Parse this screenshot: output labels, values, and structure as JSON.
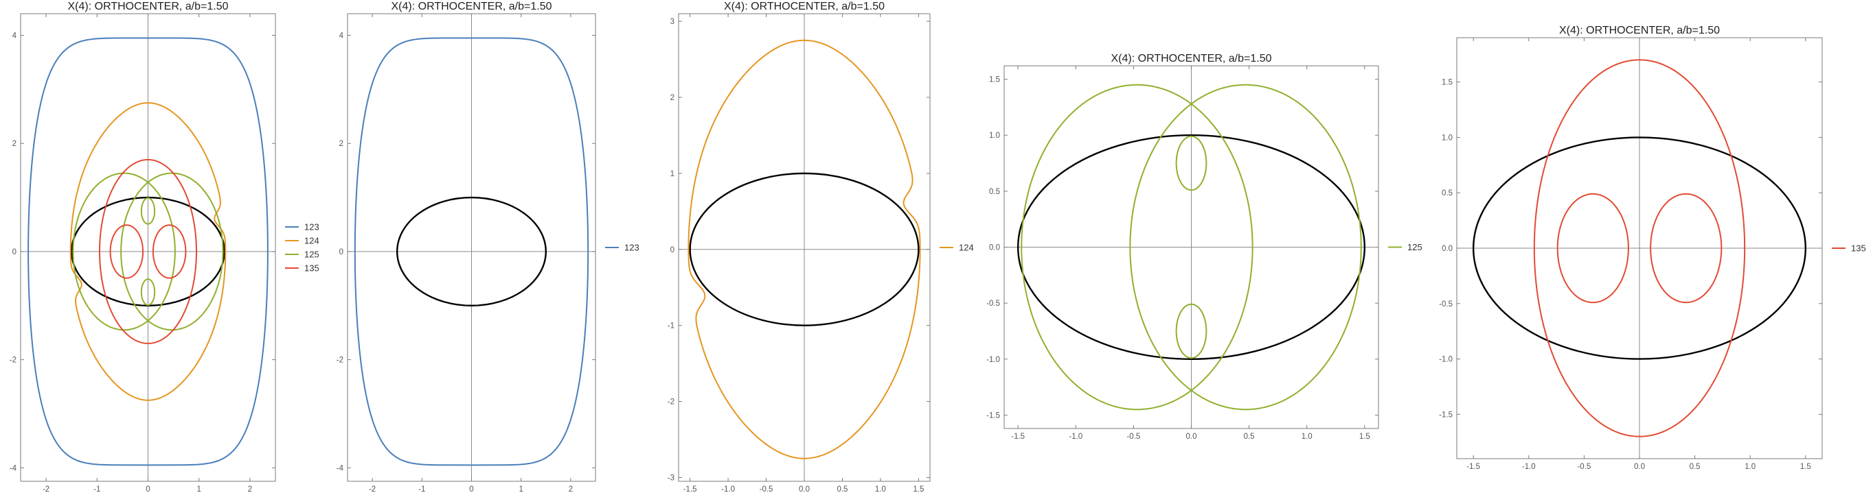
{
  "chart_data": [
    {
      "type": "line",
      "title": "X(4): ORTHOCENTER, a/b=1.50",
      "xlim": [
        -2.5,
        2.5
      ],
      "ylim": [
        -4.25,
        4.4
      ],
      "xticks": [
        -2,
        -1,
        0,
        1,
        2
      ],
      "yticks": [
        -4,
        -2,
        0,
        2,
        4
      ],
      "xtick_labels": [
        "-2",
        "-1",
        "0",
        "1",
        "2"
      ],
      "ytick_labels": [
        "-4",
        "-2",
        "0",
        "2",
        "4"
      ],
      "ellipse": {
        "a": 1.5,
        "b": 1.0
      },
      "series": [
        {
          "name": "123",
          "color": "#4a7ebb",
          "kind": "rounded-oval",
          "rx": 2.35,
          "ry": 3.95,
          "n": 6
        },
        {
          "name": "124",
          "color": "#e69520",
          "kind": "peanut",
          "rx": 1.52,
          "ry": 2.75,
          "dip": 0.12
        },
        {
          "name": "125",
          "color": "#8fb02c",
          "kind": "double-lobes",
          "lobe_cx": 0.47,
          "lobe_rx": 1.0,
          "lobe_ry": 1.45,
          "loop_cy": 0.75,
          "loop_rx": 0.13,
          "loop_ry": 0.24
        },
        {
          "name": "135",
          "color": "#e34a33",
          "kind": "circles",
          "big_rx": 0.95,
          "big_ry": 1.7,
          "small_cx": 0.42,
          "small_rx": 0.32,
          "small_ry": 0.49
        }
      ],
      "legend": "right"
    },
    {
      "type": "line",
      "title": "X(4): ORTHOCENTER, a/b=1.50",
      "xlim": [
        -2.5,
        2.5
      ],
      "ylim": [
        -4.25,
        4.4
      ],
      "xticks": [
        -2,
        -1,
        0,
        1,
        2
      ],
      "yticks": [
        -4,
        -2,
        0,
        2,
        4
      ],
      "xtick_labels": [
        "-2",
        "-1",
        "0",
        "1",
        "2"
      ],
      "ytick_labels": [
        "-4",
        "-2",
        "0",
        "2",
        "4"
      ],
      "ellipse": {
        "a": 1.5,
        "b": 1.0
      },
      "series": [
        {
          "name": "123",
          "color": "#4a7ebb",
          "kind": "rounded-oval",
          "rx": 2.35,
          "ry": 3.95,
          "n": 6
        }
      ],
      "legend": "right"
    },
    {
      "type": "line",
      "title": "X(4): ORTHOCENTER, a/b=1.50",
      "xlim": [
        -1.65,
        1.65
      ],
      "ylim": [
        -3.05,
        3.1
      ],
      "xticks": [
        -1.5,
        -1.0,
        -0.5,
        0.0,
        0.5,
        1.0,
        1.5
      ],
      "yticks": [
        -3,
        -2,
        -1,
        0,
        1,
        2,
        3
      ],
      "xtick_labels": [
        "-1.5",
        "-1.0",
        "-0.5",
        "0.0",
        "0.5",
        "1.0",
        "1.5"
      ],
      "ytick_labels": [
        "-3",
        "-2",
        "-1",
        "0",
        "1",
        "2",
        "3"
      ],
      "ellipse": {
        "a": 1.5,
        "b": 1.0
      },
      "series": [
        {
          "name": "124",
          "color": "#e69520",
          "kind": "peanut",
          "rx": 1.52,
          "ry": 2.75,
          "dip": 0.12
        }
      ],
      "legend": "right"
    },
    {
      "type": "line",
      "title": "X(4): ORTHOCENTER, a/b=1.50",
      "xlim": [
        -1.62,
        1.62
      ],
      "ylim": [
        -1.62,
        1.62
      ],
      "xticks": [
        -1.5,
        -1.0,
        -0.5,
        0.0,
        0.5,
        1.0,
        1.5
      ],
      "yticks": [
        -1.5,
        -1.0,
        -0.5,
        0.0,
        0.5,
        1.0,
        1.5
      ],
      "xtick_labels": [
        "-1.5",
        "-1.0",
        "-0.5",
        "0.0",
        "0.5",
        "1.0",
        "1.5"
      ],
      "ytick_labels": [
        "-1.5",
        "-1.0",
        "-0.5",
        "0.0",
        "0.5",
        "1.0",
        "1.5"
      ],
      "ellipse": {
        "a": 1.5,
        "b": 1.0
      },
      "series": [
        {
          "name": "125",
          "color": "#8fb02c",
          "kind": "double-lobes",
          "lobe_cx": 0.47,
          "lobe_rx": 1.0,
          "lobe_ry": 1.45,
          "loop_cy": 0.75,
          "loop_rx": 0.13,
          "loop_ry": 0.24
        }
      ],
      "legend": "right"
    },
    {
      "type": "line",
      "title": "X(4): ORTHOCENTER, a/b=1.50",
      "xlim": [
        -1.65,
        1.65
      ],
      "ylim": [
        -1.9,
        1.9
      ],
      "xticks": [
        -1.5,
        -1.0,
        -0.5,
        0.0,
        0.5,
        1.0,
        1.5
      ],
      "yticks": [
        -1.5,
        -1.0,
        -0.5,
        0.0,
        0.5,
        1.0,
        1.5
      ],
      "xtick_labels": [
        "-1.5",
        "-1.0",
        "-0.5",
        "0.0",
        "0.5",
        "1.0",
        "1.5"
      ],
      "ytick_labels": [
        "-1.5",
        "-1.0",
        "-0.5",
        "0.0",
        "0.5",
        "1.0",
        "1.5"
      ],
      "ellipse": {
        "a": 1.5,
        "b": 1.0
      },
      "series": [
        {
          "name": "135",
          "color": "#e34a33",
          "kind": "circles",
          "big_rx": 0.95,
          "big_ry": 1.7,
          "small_cx": 0.42,
          "small_rx": 0.32,
          "small_ry": 0.49
        }
      ],
      "legend": "right"
    }
  ]
}
